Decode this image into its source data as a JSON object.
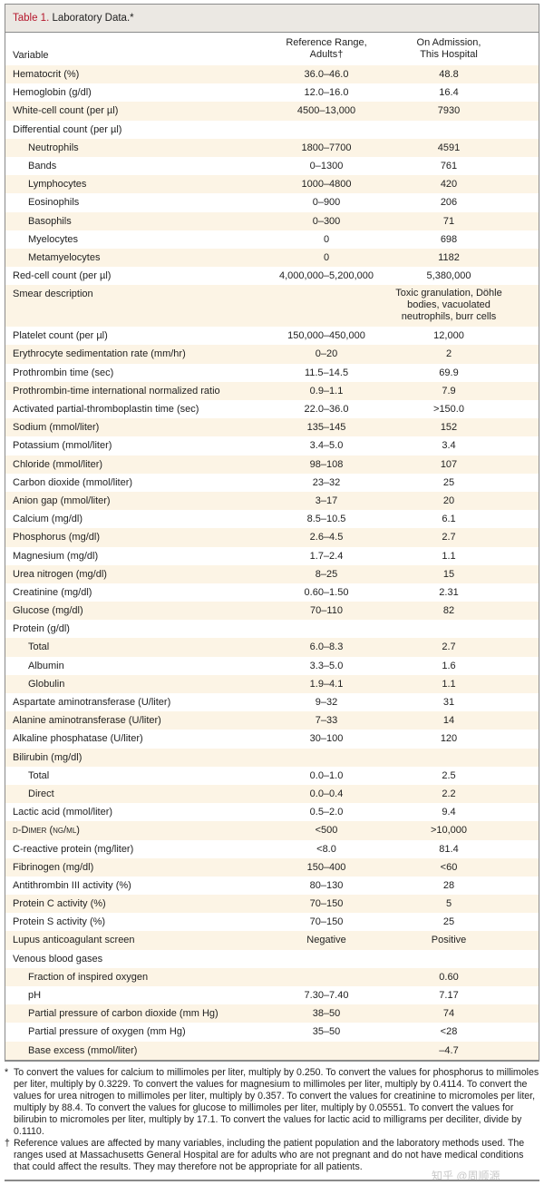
{
  "title": {
    "label": "Table 1.",
    "text": " Laboratory Data.*"
  },
  "headers": {
    "variable": "Variable",
    "ref_line1": "Reference Range,",
    "ref_line2": "Adults†",
    "adm_line1": "On Admission,",
    "adm_line2": "This Hospital"
  },
  "rows": [
    {
      "v": "Hematocrit (%)",
      "r": "36.0–46.0",
      "a": "48.8"
    },
    {
      "v": "Hemoglobin (g/dl)",
      "r": "12.0–16.0",
      "a": "16.4"
    },
    {
      "v": "White-cell count (per µl)",
      "r": "4500–13,000",
      "a": "7930"
    },
    {
      "v": "Differential count (per µl)",
      "r": "",
      "a": ""
    },
    {
      "v": "Neutrophils",
      "r": "1800–7700",
      "a": "4591",
      "i": 1
    },
    {
      "v": "Bands",
      "r": "0–1300",
      "a": "761",
      "i": 1
    },
    {
      "v": "Lymphocytes",
      "r": "1000–4800",
      "a": "420",
      "i": 1
    },
    {
      "v": "Eosinophils",
      "r": "0–900",
      "a": "206",
      "i": 1
    },
    {
      "v": "Basophils",
      "r": "0–300",
      "a": "71",
      "i": 1
    },
    {
      "v": "Myelocytes",
      "r": "0",
      "a": "698",
      "i": 1
    },
    {
      "v": "Metamyelocytes",
      "r": "0",
      "a": "1182",
      "i": 1
    },
    {
      "v": "Red-cell count (per µl)",
      "r": "4,000,000–5,200,000",
      "a": "5,380,000"
    },
    {
      "v": "Smear description",
      "r": "",
      "a": "Toxic granulation, Döhle bod­ies, vacuolated neutrophils, burr cells",
      "t": 1
    },
    {
      "v": "Platelet count (per µl)",
      "r": "150,000–450,000",
      "a": "12,000"
    },
    {
      "v": "Erythrocyte sedimentation rate (mm/hr)",
      "r": "0–20",
      "a": "2"
    },
    {
      "v": "Prothrombin time (sec)",
      "r": "11.5–14.5",
      "a": "69.9"
    },
    {
      "v": "Prothrombin-time international normalized ratio",
      "r": "0.9–1.1",
      "a": "7.9"
    },
    {
      "v": "Activated partial-thromboplastin time (sec)",
      "r": "22.0–36.0",
      "a": ">150.0"
    },
    {
      "v": "Sodium (mmol/liter)",
      "r": "135–145",
      "a": "152"
    },
    {
      "v": "Potassium (mmol/liter)",
      "r": "3.4–5.0",
      "a": "3.4"
    },
    {
      "v": "Chloride (mmol/liter)",
      "r": "98–108",
      "a": "107"
    },
    {
      "v": "Carbon dioxide (mmol/liter)",
      "r": "23–32",
      "a": "25"
    },
    {
      "v": "Anion gap (mmol/liter)",
      "r": "3–17",
      "a": "20"
    },
    {
      "v": "Calcium (mg/dl)",
      "r": "8.5–10.5",
      "a": "6.1"
    },
    {
      "v": "Phosphorus (mg/dl)",
      "r": "2.6–4.5",
      "a": "2.7"
    },
    {
      "v": "Magnesium (mg/dl)",
      "r": "1.7–2.4",
      "a": "1.1"
    },
    {
      "v": "Urea nitrogen (mg/dl)",
      "r": "8–25",
      "a": "15"
    },
    {
      "v": "Creatinine (mg/dl)",
      "r": "0.60–1.50",
      "a": "2.31"
    },
    {
      "v": "Glucose (mg/dl)",
      "r": "70–110",
      "a": "82"
    },
    {
      "v": "Protein (g/dl)",
      "r": "",
      "a": ""
    },
    {
      "v": "Total",
      "r": "6.0–8.3",
      "a": "2.7",
      "i": 1
    },
    {
      "v": "Albumin",
      "r": "3.3–5.0",
      "a": "1.6",
      "i": 1
    },
    {
      "v": "Globulin",
      "r": "1.9–4.1",
      "a": "1.1",
      "i": 1
    },
    {
      "v": "Aspartate aminotransferase (U/liter)",
      "r": "9–32",
      "a": "31"
    },
    {
      "v": "Alanine aminotransferase (U/liter)",
      "r": "7–33",
      "a": "14"
    },
    {
      "v": "Alkaline phosphatase (U/liter)",
      "r": "30–100",
      "a": "120"
    },
    {
      "v": "Bilirubin (mg/dl)",
      "r": "",
      "a": ""
    },
    {
      "v": "Total",
      "r": "0.0–1.0",
      "a": "2.5",
      "i": 1
    },
    {
      "v": "Direct",
      "r": "0.0–0.4",
      "a": "2.2",
      "i": 1
    },
    {
      "v": "Lactic acid (mmol/liter)",
      "r": "0.5–2.0",
      "a": "9.4"
    },
    {
      "v": "d-Dimer (ng/ml)",
      "r": "<500",
      "a": ">10,000",
      "sc": 1
    },
    {
      "v": "C-reactive protein (mg/liter)",
      "r": "<8.0",
      "a": "81.4"
    },
    {
      "v": "Fibrinogen (mg/dl)",
      "r": "150–400",
      "a": "<60"
    },
    {
      "v": "Antithrombin III activity (%)",
      "r": "80–130",
      "a": "28"
    },
    {
      "v": "Protein C activity (%)",
      "r": "70–150",
      "a": "5"
    },
    {
      "v": "Protein S activity (%)",
      "r": "70–150",
      "a": "25"
    },
    {
      "v": "Lupus anticoagulant screen",
      "r": "Negative",
      "a": "Positive"
    },
    {
      "v": "Venous blood gases",
      "r": "",
      "a": ""
    },
    {
      "v": "Fraction of inspired oxygen",
      "r": "",
      "a": "0.60",
      "i": 1
    },
    {
      "v": "pH",
      "r": "7.30–7.40",
      "a": "7.17",
      "i": 1
    },
    {
      "v": "Partial pressure of carbon dioxide (mm Hg)",
      "r": "38–50",
      "a": "74",
      "i": 1
    },
    {
      "v": "Partial pressure of oxygen (mm Hg)",
      "r": "35–50",
      "a": "<28",
      "i": 1
    },
    {
      "v": "Base excess (mmol/liter)",
      "r": "",
      "a": "–4.7",
      "i": 1
    }
  ],
  "footnotes": [
    {
      "mark": "*",
      "text": "To convert the values for calcium to millimoles per liter, multiply by 0.250. To convert the values for phosphorus to millimoles per liter, multiply by 0.3229. To convert the values for magnesium to millimoles per liter, multiply by 0.4114. To convert the values for urea nitrogen to millimoles per liter, multiply by 0.357. To convert the values for creatinine to micromoles per liter, multiply by 88.4. To convert the values for glucose to millimoles per liter, multiply by 0.05551. To convert the values for bilirubin to micromoles per liter, multiply by 17.1. To convert the values for lactic acid to milligrams per deciliter, divide by 0.1110."
    },
    {
      "mark": "†",
      "text": "Reference values are affected by many variables, including the patient population and the laboratory methods used. The ranges used at Massachusetts General Hospital are for adults who are not pregnant and do not have medical conditions that could affect the results. They may therefore not be appropriate for all patients."
    }
  ],
  "watermark": "知乎 @周顺源",
  "colors": {
    "title_red": "#b5172c",
    "row_shade": "#fcf4e5",
    "title_bg": "#ebe8e3"
  }
}
